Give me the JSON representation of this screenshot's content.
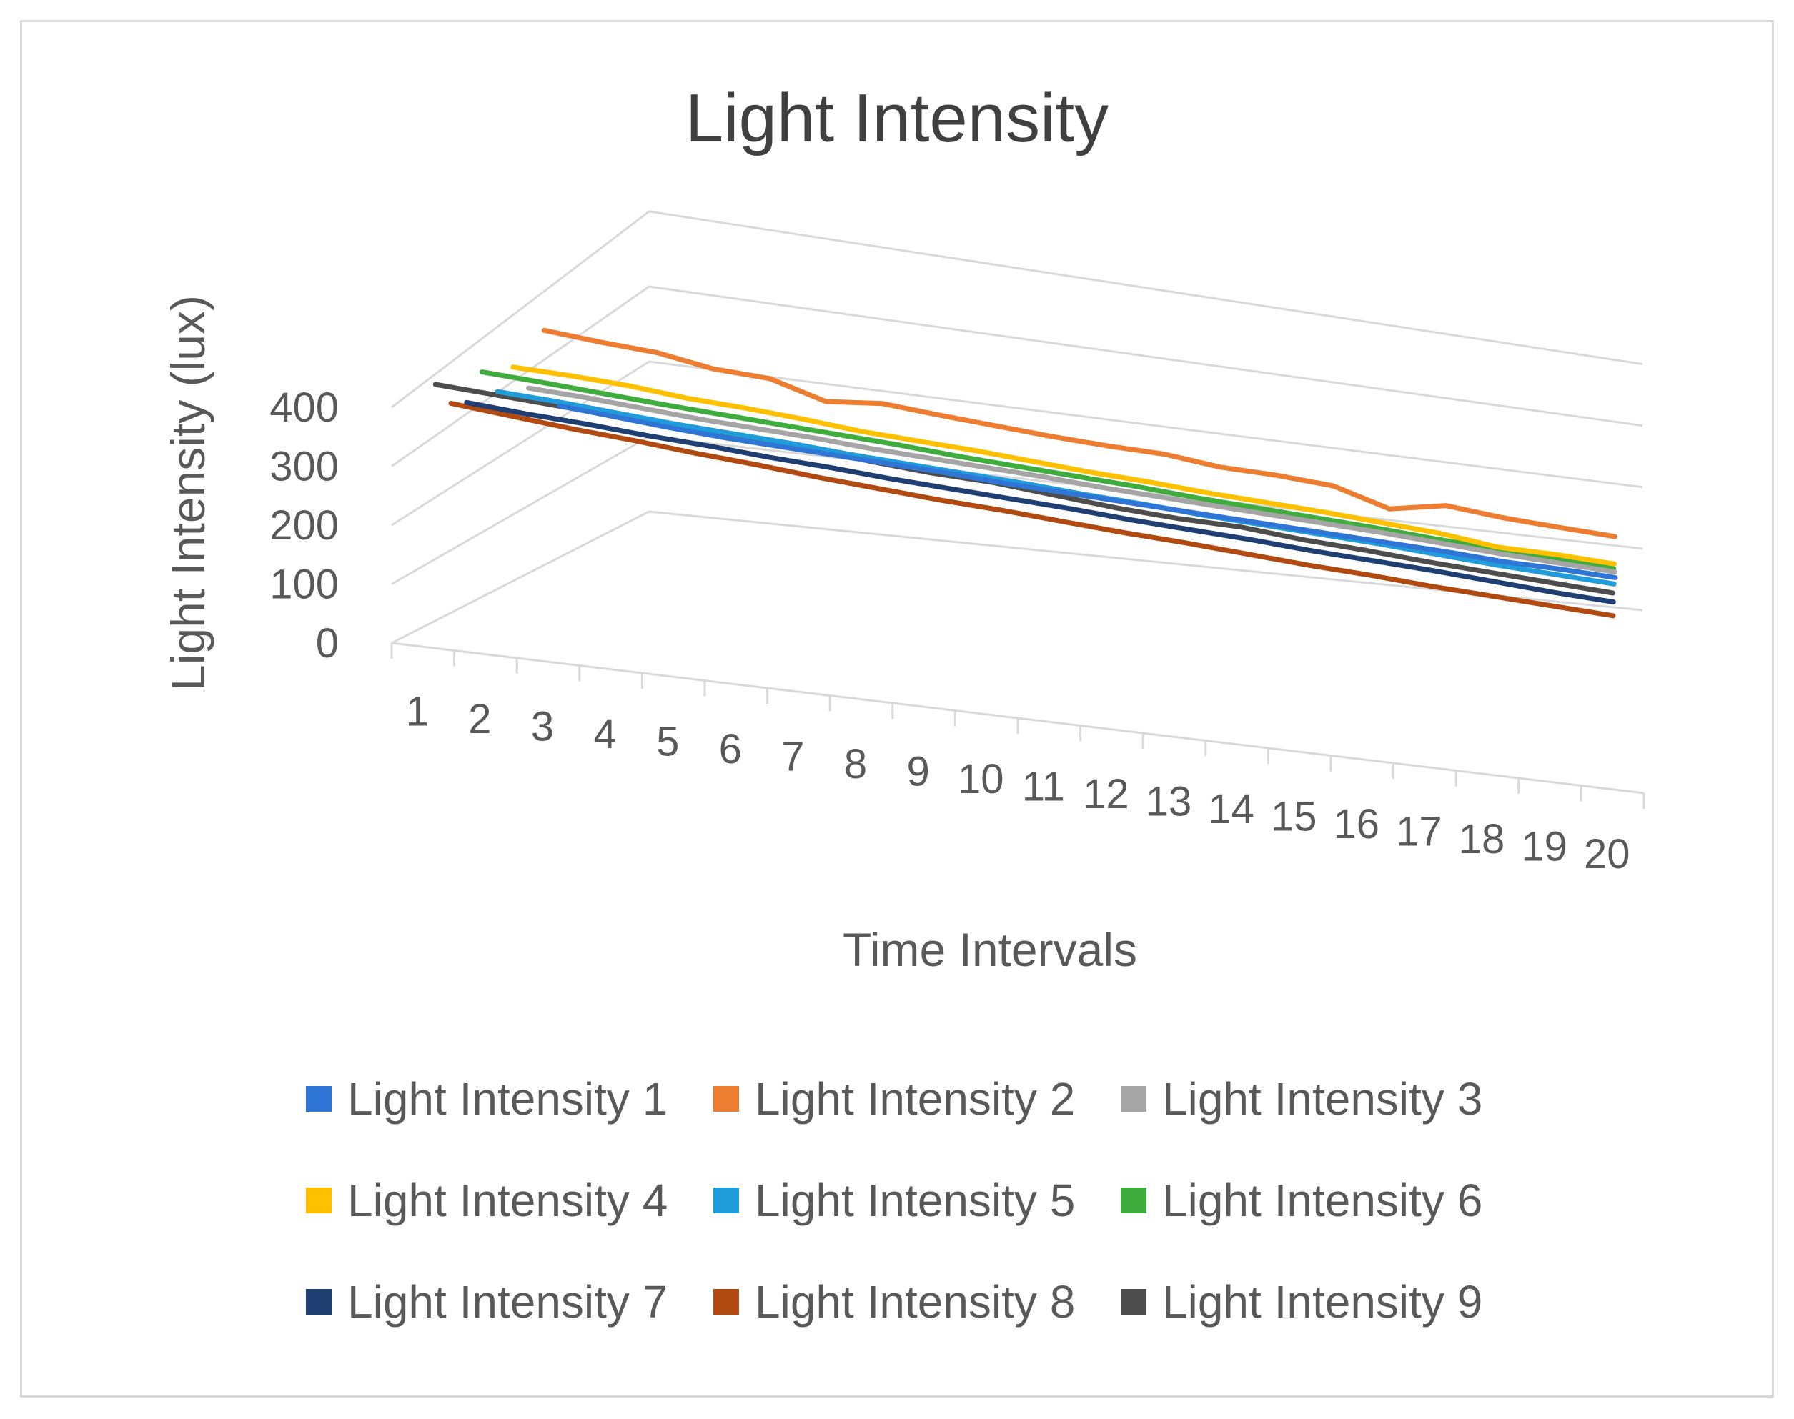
{
  "chart_data": {
    "type": "line",
    "title": "Light Intensity",
    "xlabel": "Time Intervals",
    "ylabel": "Light Intensity (lux)",
    "ylim": [
      0,
      400
    ],
    "y_ticks": [
      "0",
      "100",
      "200",
      "300",
      "400"
    ],
    "categories": [
      "1",
      "2",
      "3",
      "4",
      "5",
      "6",
      "7",
      "8",
      "9",
      "10",
      "11",
      "12",
      "13",
      "14",
      "15",
      "16",
      "17",
      "18",
      "19",
      "20"
    ],
    "grid": true,
    "legend_position": "bottom",
    "series": [
      {
        "name": "Light Intensity 1",
        "color": "#2E75D6",
        "values": [
          250,
          245,
          240,
          236,
          234,
          232,
          230,
          228,
          224,
          222,
          220,
          218,
          216,
          214,
          212,
          210,
          208,
          204,
          204,
          202
        ]
      },
      {
        "name": "Light Intensity 2",
        "color": "#ED7D31",
        "values": [
          380,
          375,
          372,
          360,
          358,
          335,
          345,
          340,
          336,
          332,
          330,
          330,
          322,
          322,
          318,
          292,
          312,
          305,
          302,
          300
        ]
      },
      {
        "name": "Light Intensity 3",
        "color": "#A5A5A5",
        "values": [
          310,
          308,
          304,
          300,
          298,
          296,
          292,
          290,
          288,
          286,
          282,
          280,
          278,
          276,
          274,
          272,
          268,
          264,
          262,
          260
        ]
      },
      {
        "name": "Light Intensity 4",
        "color": "#FFC000",
        "values": [
          360,
          360,
          358,
          352,
          350,
          346,
          340,
          338,
          336,
          332,
          328,
          326,
          322,
          320,
          318,
          314,
          310,
          300,
          302,
          300
        ]
      },
      {
        "name": "Light Intensity 5",
        "color": "#1F9CD9",
        "values": [
          340,
          338,
          334,
          330,
          328,
          326,
          322,
          320,
          318,
          316,
          312,
          310,
          306,
          304,
          302,
          300,
          296,
          292,
          290,
          288
        ]
      },
      {
        "name": "Light Intensity 6",
        "color": "#3EAD3E",
        "values": [
          390,
          388,
          385,
          382,
          380,
          378,
          376,
          374,
          370,
          368,
          366,
          364,
          360,
          358,
          356,
          354,
          350,
          348,
          346,
          344
        ]
      },
      {
        "name": "Light Intensity 7",
        "color": "#1F3F73",
        "values": [
          360,
          356,
          354,
          350,
          348,
          344,
          342,
          338,
          336,
          334,
          332,
          328,
          326,
          324,
          320,
          318,
          316,
          312,
          308,
          306
        ]
      },
      {
        "name": "Light Intensity 8",
        "color": "#B04A10",
        "values": [
          378,
          372,
          366,
          362,
          356,
          352,
          346,
          342,
          338,
          336,
          332,
          328,
          326,
          322,
          318,
          316,
          312,
          310,
          308,
          306
        ]
      },
      {
        "name": "Light Intensity 9",
        "color": "#4D4D4D",
        "values": [
          430,
          428,
          426,
          424,
          424,
          422,
          422,
          414,
          410,
          410,
          404,
          398,
          396,
          398,
          392,
          390,
          386,
          384,
          382,
          380
        ]
      }
    ]
  }
}
